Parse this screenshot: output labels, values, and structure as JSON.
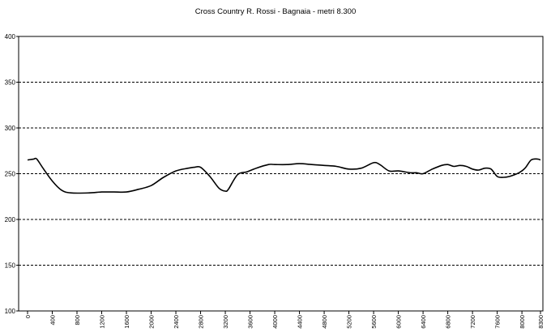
{
  "chart_data": {
    "type": "line",
    "title": "Cross Country R. Rossi - Bagnaia - metri 8.300",
    "xlabel": "",
    "ylabel": "",
    "ylim": [
      100,
      400
    ],
    "yticks": [
      "100",
      "150",
      "200",
      "250",
      "300",
      "350",
      "400"
    ],
    "xlim": [
      0,
      8300
    ],
    "xticks": [
      "0",
      "400",
      "800",
      "1200",
      "1600",
      "2000",
      "2400",
      "2800",
      "3200",
      "3600",
      "4000",
      "4400",
      "4800",
      "5200",
      "5600",
      "6000",
      "6400",
      "6800",
      "7200",
      "7600",
      "8000",
      "8300"
    ],
    "grid": "horizontal dashed",
    "series": [
      {
        "color": "#000000",
        "x": [
          0,
          100,
          150,
          250,
          400,
          550,
          700,
          1000,
          1200,
          1400,
          1600,
          1800,
          2000,
          2200,
          2400,
          2600,
          2700,
          2800,
          2950,
          3100,
          3200,
          3250,
          3400,
          3550,
          3700,
          3900,
          4000,
          4200,
          4400,
          4600,
          4800,
          5000,
          5200,
          5400,
          5600,
          5700,
          5850,
          6000,
          6200,
          6300,
          6400,
          6550,
          6700,
          6800,
          6900,
          7000,
          7100,
          7200,
          7300,
          7400,
          7500,
          7600,
          7700,
          7800,
          7950,
          8050,
          8150,
          8250,
          8300
        ],
        "y": [
          265,
          266,
          266,
          256,
          242,
          232,
          229,
          229,
          230,
          230,
          230,
          233,
          237,
          246,
          253,
          256,
          257,
          257,
          247,
          234,
          231,
          233,
          249,
          252,
          256,
          260,
          260,
          260,
          261,
          260,
          259,
          258,
          255,
          256,
          262,
          260,
          253,
          253,
          251,
          251,
          250,
          255,
          259,
          260,
          258,
          259,
          258,
          255,
          254,
          256,
          255,
          247,
          246,
          247,
          251,
          256,
          265,
          266,
          265
        ]
      }
    ]
  }
}
